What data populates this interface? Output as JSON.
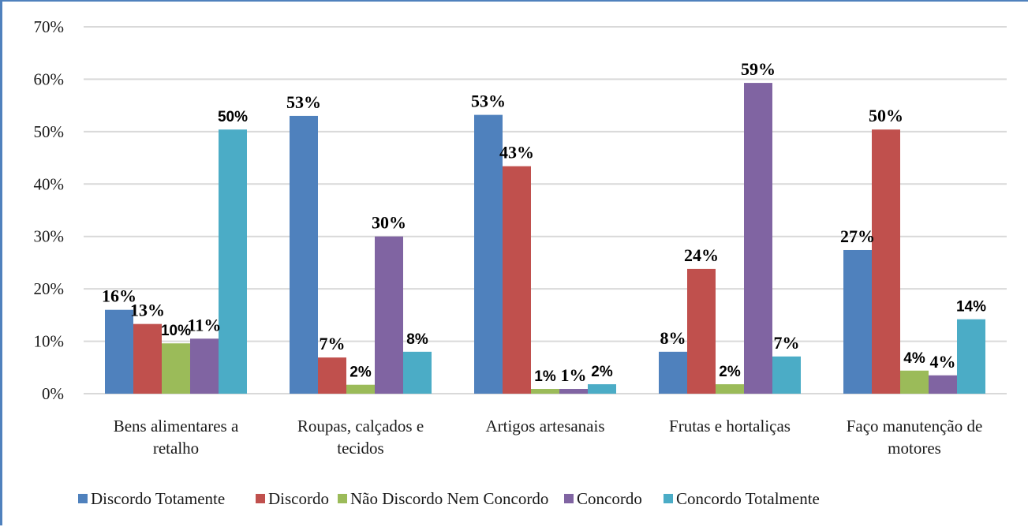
{
  "chart_data": {
    "type": "bar",
    "title": "",
    "xlabel": "",
    "ylabel": "",
    "ylim": [
      0,
      70
    ],
    "yticks": [
      "0%",
      "10%",
      "20%",
      "30%",
      "40%",
      "50%",
      "60%",
      "70%"
    ],
    "grid": true,
    "legend_position": "bottom",
    "categories": [
      [
        "Bens alimentares a",
        "retalho"
      ],
      [
        "Roupas, calçados e",
        "tecidos"
      ],
      [
        "Artigos artesanais"
      ],
      [
        "Frutas e hortaliças"
      ],
      [
        "Faço manutenção de",
        "motores"
      ]
    ],
    "series": [
      {
        "name": "Discordo Totamente",
        "color": "#4f81bd",
        "values": [
          16.0,
          53.0,
          53.2,
          8.0,
          27.4
        ],
        "labels": [
          "16%",
          "53%",
          "53%",
          "8%",
          "27%"
        ],
        "label_style": [
          "serif",
          "serif",
          "serif",
          "serif",
          "serif"
        ]
      },
      {
        "name": "Discordo",
        "color": "#c0504d",
        "values": [
          13.3,
          6.9,
          43.4,
          23.8,
          50.4
        ],
        "labels": [
          "13%",
          "7%",
          "43%",
          "24%",
          "50%"
        ],
        "label_style": [
          "serif",
          "serif",
          "serif",
          "serif",
          "serif"
        ]
      },
      {
        "name": "Não Discordo Nem Concordo",
        "color": "#9bbb59",
        "values": [
          9.6,
          1.7,
          0.9,
          1.8,
          4.4
        ],
        "labels": [
          "10%",
          "2%",
          "1%",
          "2%",
          "4%"
        ],
        "label_style": [
          "sans",
          "sans",
          "sans",
          "sans",
          "sans"
        ]
      },
      {
        "name": "Concordo",
        "color": "#8064a2",
        "values": [
          10.5,
          30.0,
          0.9,
          59.3,
          3.5
        ],
        "labels": [
          "11%",
          "30%",
          "1%",
          "59%",
          "4%"
        ],
        "label_style": [
          "serif",
          "serif",
          "serif",
          "serif",
          "serif"
        ]
      },
      {
        "name": "Concordo Totalmente",
        "color": "#4bacc6",
        "values": [
          50.4,
          8.0,
          1.8,
          7.1,
          14.2
        ],
        "labels": [
          "50%",
          "8%",
          "2%",
          "7%",
          "14%"
        ],
        "label_style": [
          "sans",
          "sans",
          "sans",
          "serif",
          "sans"
        ]
      }
    ]
  }
}
